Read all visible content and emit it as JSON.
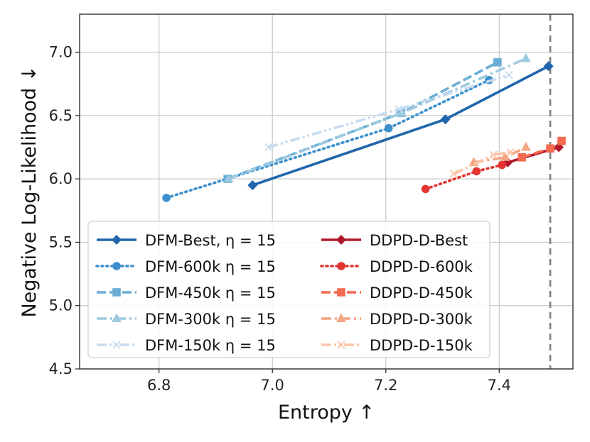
{
  "chart_data": {
    "type": "line",
    "xlabel": "Entropy ↑",
    "ylabel": "Negative Log-Likelihood ↓",
    "xlim": [
      6.66,
      7.53
    ],
    "ylim": [
      4.5,
      7.3
    ],
    "xticks": [
      6.8,
      7.0,
      7.2,
      7.4
    ],
    "yticks": [
      4.5,
      5.0,
      5.5,
      6.0,
      6.5,
      7.0
    ],
    "xtick_labels": [
      "6.8",
      "7.0",
      "7.2",
      "7.4"
    ],
    "ytick_labels": [
      "4.5",
      "5.0",
      "5.5",
      "6.0",
      "6.5",
      "7.0"
    ],
    "grid": true,
    "reference_line": {
      "orientation": "vertical",
      "x": 7.49,
      "style": "dashed",
      "color": "#7f7f7f"
    },
    "legend": {
      "placement": "lower-left",
      "columns": 2
    },
    "series": [
      {
        "name": "DFM-Best, η = 15",
        "color": "#2166ac",
        "dash": "solid",
        "marker": "diamond",
        "x": [
          6.965,
          7.305,
          7.487
        ],
        "y": [
          5.95,
          6.47,
          6.89
        ]
      },
      {
        "name": "DFM-600k η = 15",
        "color": "#3a8fcc",
        "dash": "dotted",
        "marker": "circle",
        "x": [
          6.813,
          7.205,
          7.382
        ],
        "y": [
          5.85,
          6.4,
          6.78
        ]
      },
      {
        "name": "DFM-450k η = 15",
        "color": "#6aaed6",
        "dash": "dashed",
        "marker": "square",
        "x": [
          6.921,
          7.227,
          7.397
        ],
        "y": [
          6.0,
          6.52,
          6.92
        ]
      },
      {
        "name": "DFM-300k η = 15",
        "color": "#9ecae1",
        "dash": "dashdot",
        "marker": "triangle",
        "x": [
          6.923,
          7.228,
          7.447
        ],
        "y": [
          6.0,
          6.52,
          6.95
        ]
      },
      {
        "name": "DFM-150k η = 15",
        "color": "#c6dbef",
        "dash": "dashdotdot",
        "marker": "x",
        "x": [
          6.993,
          7.223,
          7.417
        ],
        "y": [
          6.25,
          6.55,
          6.82
        ]
      },
      {
        "name": "DDPD-D-Best",
        "color": "#b2182b",
        "dash": "solid",
        "marker": "diamond",
        "x": [
          7.415,
          7.505
        ],
        "y": [
          6.13,
          6.25
        ]
      },
      {
        "name": "DDPD-D-600k",
        "color": "#e3342f",
        "dash": "dotted",
        "marker": "circle",
        "x": [
          7.27,
          7.36,
          7.405
        ],
        "y": [
          5.92,
          6.06,
          6.11
        ]
      },
      {
        "name": "DDPD-D-450k",
        "color": "#f26a4f",
        "dash": "dashed",
        "marker": "square",
        "x": [
          7.44,
          7.49,
          7.51
        ],
        "y": [
          6.17,
          6.24,
          6.3
        ]
      },
      {
        "name": "DDPD-D-300k",
        "color": "#f4a582",
        "dash": "dashdot",
        "marker": "triangle",
        "x": [
          7.355,
          7.41,
          7.447
        ],
        "y": [
          6.13,
          6.17,
          6.25
        ]
      },
      {
        "name": "DDPD-D-150k",
        "color": "#fcc5a8",
        "dash": "dashdotdot",
        "marker": "x",
        "x": [
          7.32,
          7.39,
          7.42
        ],
        "y": [
          6.04,
          6.19,
          6.21
        ]
      }
    ]
  }
}
